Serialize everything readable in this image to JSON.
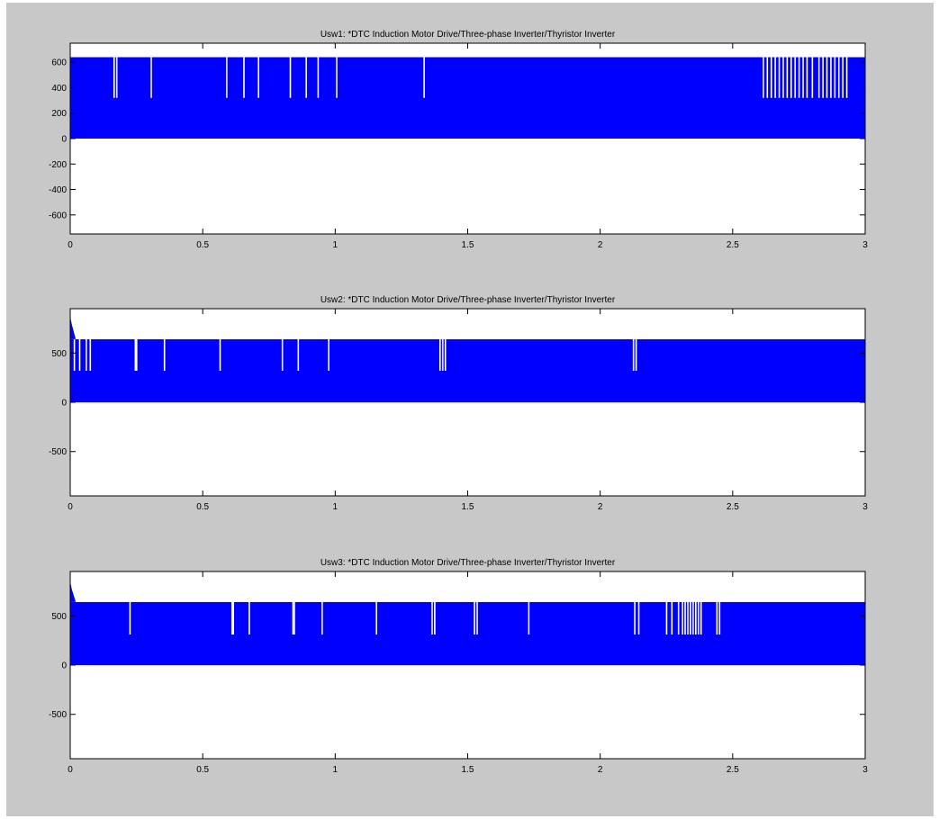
{
  "figure": {
    "background": "#c8c8c8",
    "axes_background": "#ffffff",
    "signal_color": "#0000ff"
  },
  "chart_data": [
    {
      "type": "area",
      "title": "Usw1: *DTC Induction Motor Drive/Three-phase Inverter/Thyristor Inverter",
      "xlabel": "",
      "ylabel": "",
      "xlim": [
        0,
        3
      ],
      "ylim": [
        -750,
        750
      ],
      "x_ticks": [
        0,
        0.5,
        1,
        1.5,
        2,
        2.5,
        3
      ],
      "x_tick_labels": [
        "0",
        "0.5",
        "1",
        "1.5",
        "2",
        "2.5",
        "3"
      ],
      "y_ticks": [
        600,
        400,
        200,
        0,
        -200,
        -400,
        -600
      ],
      "y_tick_labels": [
        "600",
        "400",
        "200",
        "0",
        "-200",
        "-400",
        "-600"
      ],
      "grid": false,
      "band": {
        "low": 0,
        "high": 640
      },
      "initial_spike": null,
      "notch_level": 320,
      "notch_times": [
        0.165,
        0.175,
        0.305,
        0.59,
        0.655,
        0.71,
        0.83,
        0.89,
        0.935,
        1.005,
        1.335,
        2.615,
        2.63,
        2.645,
        2.66,
        2.675,
        2.69,
        2.705,
        2.72,
        2.735,
        2.75,
        2.765,
        2.78,
        2.8,
        2.825,
        2.84,
        2.855,
        2.87,
        2.885,
        2.9,
        2.915,
        2.93
      ]
    },
    {
      "type": "area",
      "title": "Usw2: *DTC Induction Motor Drive/Three-phase Inverter/Thyristor Inverter",
      "xlabel": "",
      "ylabel": "",
      "xlim": [
        0,
        3
      ],
      "ylim": [
        -950,
        950
      ],
      "x_ticks": [
        0,
        0.5,
        1,
        1.5,
        2,
        2.5,
        3
      ],
      "x_tick_labels": [
        "0",
        "0.5",
        "1",
        "1.5",
        "2",
        "2.5",
        "3"
      ],
      "y_ticks": [
        500,
        0,
        -500
      ],
      "y_tick_labels": [
        "500",
        "0",
        "-500"
      ],
      "grid": false,
      "band": {
        "low": 0,
        "high": 640
      },
      "initial_spike": 870,
      "notch_level": 320,
      "notch_times": [
        0.015,
        0.035,
        0.06,
        0.075,
        0.245,
        0.25,
        0.355,
        0.565,
        0.8,
        0.86,
        0.975,
        1.395,
        1.405,
        1.415,
        2.125,
        2.135
      ]
    },
    {
      "type": "area",
      "title": "Usw3: *DTC Induction Motor Drive/Three-phase Inverter/Thyristor Inverter",
      "xlabel": "",
      "ylabel": "",
      "xlim": [
        0,
        3
      ],
      "ylim": [
        -950,
        950
      ],
      "x_ticks": [
        0,
        0.5,
        1,
        1.5,
        2,
        2.5,
        3
      ],
      "x_tick_labels": [
        "0",
        "0.5",
        "1",
        "1.5",
        "2",
        "2.5",
        "3"
      ],
      "y_ticks": [
        500,
        0,
        -500
      ],
      "y_tick_labels": [
        "500",
        "0",
        "-500"
      ],
      "grid": false,
      "band": {
        "low": 0,
        "high": 640
      },
      "initial_spike": 850,
      "notch_level": 310,
      "notch_times": [
        0.225,
        0.61,
        0.615,
        0.675,
        0.84,
        0.845,
        0.95,
        1.155,
        1.365,
        1.375,
        1.525,
        1.535,
        1.73,
        2.13,
        2.145,
        2.25,
        2.27,
        2.295,
        2.31,
        2.32,
        2.33,
        2.34,
        2.35,
        2.36,
        2.37,
        2.38,
        2.44,
        2.45
      ]
    }
  ]
}
